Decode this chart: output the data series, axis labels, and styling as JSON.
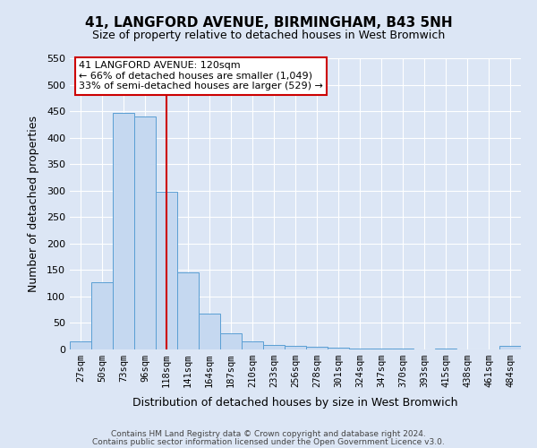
{
  "title": "41, LANGFORD AVENUE, BIRMINGHAM, B43 5NH",
  "subtitle": "Size of property relative to detached houses in West Bromwich",
  "xlabel": "Distribution of detached houses by size in West Bromwich",
  "ylabel": "Number of detached properties",
  "bar_labels": [
    "27sqm",
    "50sqm",
    "73sqm",
    "96sqm",
    "118sqm",
    "141sqm",
    "164sqm",
    "187sqm",
    "210sqm",
    "233sqm",
    "256sqm",
    "278sqm",
    "301sqm",
    "324sqm",
    "347sqm",
    "370sqm",
    "393sqm",
    "415sqm",
    "438sqm",
    "461sqm",
    "484sqm"
  ],
  "bar_values": [
    15,
    127,
    447,
    440,
    298,
    145,
    68,
    30,
    15,
    9,
    6,
    5,
    4,
    2,
    1,
    1,
    0,
    1,
    0,
    0,
    6
  ],
  "bar_color": "#c5d8f0",
  "bar_edge_color": "#5a9fd4",
  "vline_color": "#cc0000",
  "vline_pos": 4.5,
  "ylim": [
    0,
    550
  ],
  "yticks": [
    0,
    50,
    100,
    150,
    200,
    250,
    300,
    350,
    400,
    450,
    500,
    550
  ],
  "annotation_title": "41 LANGFORD AVENUE: 120sqm",
  "annotation_line1": "← 66% of detached houses are smaller (1,049)",
  "annotation_line2": "33% of semi-detached houses are larger (529) →",
  "annotation_box_color": "#ffffff",
  "annotation_box_edge": "#cc0000",
  "footer_line1": "Contains HM Land Registry data © Crown copyright and database right 2024.",
  "footer_line2": "Contains public sector information licensed under the Open Government Licence v3.0.",
  "bg_color": "#dce6f5",
  "plot_bg_color": "#dce6f5",
  "grid_color": "#ffffff",
  "title_fontsize": 11,
  "subtitle_fontsize": 9,
  "ylabel_fontsize": 9,
  "xlabel_fontsize": 9,
  "tick_fontsize": 8,
  "xtick_fontsize": 7.5,
  "footer_fontsize": 6.5
}
